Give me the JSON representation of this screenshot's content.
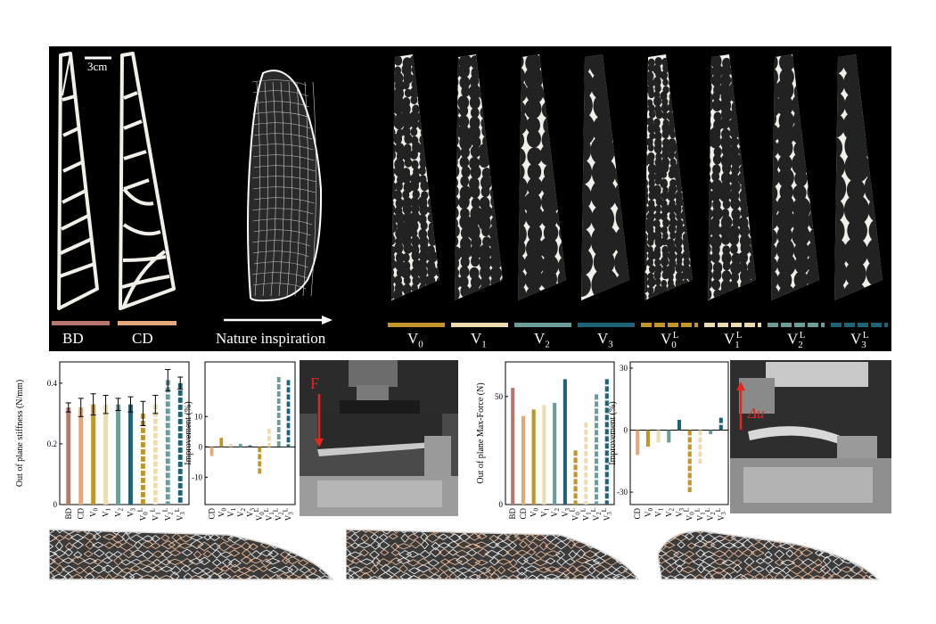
{
  "figure": {
    "scale_bar_label": "3cm",
    "arrow_label": "Nature inspiration",
    "force_label": "F",
    "disp_label": "Δu"
  },
  "wings": {
    "baseline": [
      {
        "key": "BD",
        "label": "BD",
        "color": "#b6786e"
      },
      {
        "key": "CD",
        "label": "CD",
        "color": "#e4a87a"
      }
    ],
    "designs": [
      {
        "key": "V0",
        "base": "V",
        "sub": "0",
        "sup": "",
        "color": "#c39428",
        "dashed": false
      },
      {
        "key": "V1",
        "base": "V",
        "sub": "1",
        "sup": "",
        "color": "#ecdcae",
        "dashed": false
      },
      {
        "key": "V2",
        "base": "V",
        "sub": "2",
        "sup": "",
        "color": "#6b9e98",
        "dashed": false
      },
      {
        "key": "V3",
        "base": "V",
        "sub": "3",
        "sup": "",
        "color": "#1f6476",
        "dashed": false
      },
      {
        "key": "V0L",
        "base": "V",
        "sub": "0",
        "sup": "L",
        "color": "#c39428",
        "dashed": true
      },
      {
        "key": "V1L",
        "base": "V",
        "sub": "1",
        "sup": "L",
        "color": "#ecdcae",
        "dashed": true
      },
      {
        "key": "V2L",
        "base": "V",
        "sub": "2",
        "sup": "L",
        "color": "#6b9e98",
        "dashed": true
      },
      {
        "key": "V3L",
        "base": "V",
        "sub": "3",
        "sup": "L",
        "color": "#1f6476",
        "dashed": true
      }
    ]
  },
  "chart_data": [
    {
      "type": "bar",
      "ylabel": "Out of plane stiffness (N/mm)",
      "categories": [
        "BD",
        "CD",
        "V0",
        "V1",
        "V2",
        "V3",
        "V0L",
        "V1L",
        "V2L",
        "V3L"
      ],
      "values": [
        0.32,
        0.32,
        0.33,
        0.33,
        0.33,
        0.33,
        0.3,
        0.33,
        0.41,
        0.4
      ],
      "errors": [
        0.015,
        0.03,
        0.035,
        0.03,
        0.02,
        0.025,
        0.04,
        0.03,
        0.035,
        0.02
      ],
      "ylim": [
        0,
        0.47
      ],
      "yticks": [
        0,
        0.2,
        0.4
      ],
      "ytick_labels": [
        "0",
        "0.2",
        "0.4"
      ]
    },
    {
      "type": "bar",
      "ylabel": "Improvement (%)",
      "categories": [
        "CD",
        "V0",
        "V1",
        "V2",
        "V3",
        "V0L",
        "V1L",
        "V2L",
        "V3L"
      ],
      "values": [
        -3,
        3,
        1,
        1,
        0.5,
        -9,
        6,
        23,
        22
      ],
      "ylim": [
        -19,
        28
      ],
      "yticks": [
        10,
        0,
        -10
      ],
      "ytick_labels": [
        "10",
        "0",
        "-10"
      ]
    },
    {
      "type": "bar",
      "ylabel": "Out of plane Max-Force (N)",
      "categories": [
        "BD",
        "CD",
        "V0",
        "V1",
        "V2",
        "V3",
        "V0L",
        "V1L",
        "V2L",
        "V3L"
      ],
      "values": [
        54,
        41,
        44,
        46,
        47,
        58,
        25,
        38,
        51,
        58
      ],
      "ylim": [
        0,
        66
      ],
      "yticks": [
        0,
        50
      ],
      "ytick_labels": [
        "0",
        "50"
      ]
    },
    {
      "type": "bar",
      "ylabel": "Improvement (%)",
      "categories": [
        "CD",
        "V0",
        "V1",
        "V2",
        "V3",
        "V0L",
        "V1L",
        "V2L",
        "V3L"
      ],
      "values": [
        -12,
        -8,
        -6,
        -6,
        5,
        -30,
        -17,
        -2,
        6
      ],
      "ylim": [
        -36,
        33
      ],
      "yticks": [
        30,
        0,
        -30
      ],
      "ytick_labels": [
        "30",
        "0",
        "-30"
      ]
    }
  ]
}
